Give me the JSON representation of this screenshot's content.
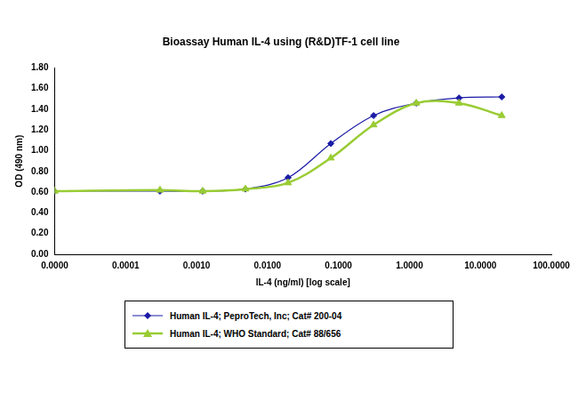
{
  "chart_data": {
    "type": "line",
    "title": "Bioassay Human IL-4 using (R&D)TF-1 cell line",
    "x_label": "IL-4 (ng/ml) [log scale]",
    "y_label": "OD (490 nm)",
    "x": [
      1e-05,
      0.000305,
      0.00122,
      0.00488,
      0.0195,
      0.078,
      0.3125,
      1.25,
      5,
      20
    ],
    "series": [
      {
        "name": "Human IL-4; PeproTech, Inc; Cat# 200-04",
        "color": "#1a1aa6",
        "marker": "diamond",
        "values": [
          0.61,
          0.61,
          0.61,
          0.63,
          0.74,
          1.07,
          1.34,
          1.46,
          1.51,
          1.52
        ]
      },
      {
        "name": "Human IL-4; WHO Standard; Cat# 88/656",
        "color": "#99cc33",
        "marker": "triangle",
        "values": [
          0.61,
          0.62,
          0.61,
          0.63,
          0.69,
          0.93,
          1.25,
          1.46,
          1.46,
          1.34
        ]
      }
    ],
    "log": "x",
    "xlim": [
      1e-05,
      100
    ],
    "xticks": [
      {
        "value": 1e-05,
        "label": "0.0000"
      },
      {
        "value": 0.0001,
        "label": "0.0001"
      },
      {
        "value": 0.001,
        "label": "0.0010"
      },
      {
        "value": 0.01,
        "label": "0.0100"
      },
      {
        "value": 0.1,
        "label": "0.1000"
      },
      {
        "value": 1,
        "label": "1.0000"
      },
      {
        "value": 10,
        "label": "10.0000"
      },
      {
        "value": 100,
        "label": "100.0000"
      }
    ],
    "ylim": [
      0,
      1.8
    ],
    "yticks": [
      {
        "value": 0,
        "label": "0.00"
      },
      {
        "value": 0.2,
        "label": "0.20"
      },
      {
        "value": 0.4,
        "label": "0.40"
      },
      {
        "value": 0.6,
        "label": "0.60"
      },
      {
        "value": 0.8,
        "label": "0.80"
      },
      {
        "value": 1,
        "label": "1.00"
      },
      {
        "value": 1.2,
        "label": "1.20"
      },
      {
        "value": 1.4,
        "label": "1.40"
      },
      {
        "value": 1.6,
        "label": "1.60"
      },
      {
        "value": 1.8,
        "label": "1.80"
      }
    ],
    "grid": false,
    "legend": "bottom"
  }
}
